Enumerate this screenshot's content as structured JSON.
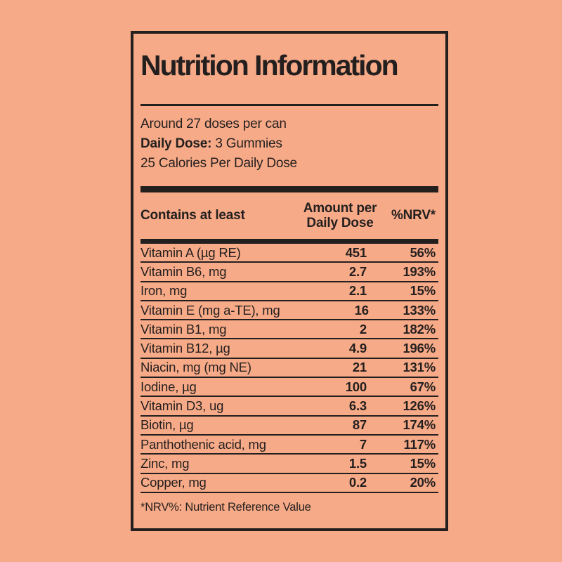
{
  "colors": {
    "background": "#f6aa87",
    "ink": "#241f1f"
  },
  "label": {
    "title": "Nutrition Information",
    "servings": "Around 27 doses per can",
    "daily_dose_label": "Daily Dose:",
    "daily_dose_value": " 3 Gummies",
    "calories": "25 Calories Per Daily Dose",
    "footnote": "*NRV%: Nutrient Reference Value"
  },
  "table": {
    "headers": {
      "nutrient": "Contains at least",
      "amount_line1": "Amount per",
      "amount_line2": "Daily Dose",
      "nrv": "%NRV*"
    },
    "rows": [
      {
        "name": "Vitamin A (µg RE)",
        "amount": "451",
        "nrv": "56%"
      },
      {
        "name": "Vitamin B6, mg",
        "amount": "2.7",
        "nrv": "193%"
      },
      {
        "name": "Iron, mg",
        "amount": "2.1",
        "nrv": "15%"
      },
      {
        "name": "Vitamin E (mg a-TE), mg",
        "amount": "16",
        "nrv": "133%"
      },
      {
        "name": "Vitamin B1, mg",
        "amount": "2",
        "nrv": "182%"
      },
      {
        "name": "Vitamin B12, µg",
        "amount": "4.9",
        "nrv": "196%"
      },
      {
        "name": "Niacin, mg (mg NE)",
        "amount": "21",
        "nrv": "131%"
      },
      {
        "name": "Iodine, µg",
        "amount": "100",
        "nrv": "67%"
      },
      {
        "name": "Vitamin D3, ug",
        "amount": "6.3",
        "nrv": "126%"
      },
      {
        "name": "Biotin, µg",
        "amount": "87",
        "nrv": "174%"
      },
      {
        "name": "Panthothenic acid, mg",
        "amount": "7",
        "nrv": "117%"
      },
      {
        "name": "Zinc, mg",
        "amount": "1.5",
        "nrv": "15%"
      },
      {
        "name": "Copper, mg",
        "amount": "0.2",
        "nrv": "20%"
      }
    ]
  }
}
